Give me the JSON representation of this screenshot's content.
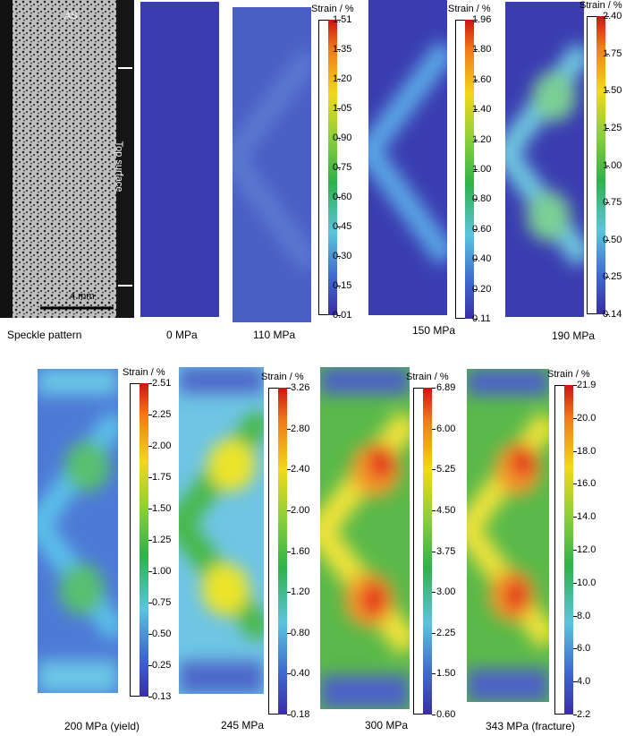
{
  "speckle": {
    "as_label": "AS",
    "top_surface_label": "Top surface",
    "scale_label": "4 mm",
    "caption": "Speckle pattern"
  },
  "strain_title": "Strain / %",
  "panels": [
    {
      "caption": "0 MPa",
      "ticks": []
    },
    {
      "caption": "110 MPa",
      "ticks": [
        "1.51",
        "1.35",
        "1.20",
        "1.05",
        "0.90",
        "0.75",
        "0.60",
        "0.45",
        "0.30",
        "0.15",
        "0.01"
      ]
    },
    {
      "caption": "150 MPa",
      "ticks": [
        "1.96",
        "1.80",
        "1.60",
        "1.40",
        "1.20",
        "1.00",
        "0.80",
        "0.60",
        "0.40",
        "0.20",
        "0.11"
      ]
    },
    {
      "caption": "190 MPa",
      "ticks": [
        "2.40",
        "1.75",
        "1.50",
        "1.25",
        "1.00",
        "0.75",
        "0.50",
        "0.25",
        "0.14"
      ]
    },
    {
      "caption": "200 MPa (yield)",
      "ticks": [
        "2.51",
        "2.25",
        "2.00",
        "1.75",
        "1.50",
        "1.25",
        "1.00",
        "0.75",
        "0.50",
        "0.25",
        "0.13"
      ]
    },
    {
      "caption": "245 MPa",
      "ticks": [
        "3.26",
        "2.80",
        "2.40",
        "2.00",
        "1.60",
        "1.20",
        "0.80",
        "0.40",
        "0.18"
      ]
    },
    {
      "caption": "300 MPa",
      "ticks": [
        "6.89",
        "6.00",
        "5.25",
        "4.50",
        "3.75",
        "3.00",
        "2.25",
        "1.50",
        "0.60"
      ]
    },
    {
      "caption": "343 MPa (fracture)",
      "ticks": [
        "21.9",
        "20.0",
        "18.0",
        "16.0",
        "14.0",
        "12.0",
        "10.0",
        "8.0",
        "6.0",
        "4.0",
        "2.2"
      ]
    }
  ],
  "colors": {
    "low": "#3a3db0",
    "mid_low": "#4fa8e8",
    "mid": "#3fbf3a",
    "mid_high": "#f2e21a",
    "high": "#e11b1b"
  }
}
